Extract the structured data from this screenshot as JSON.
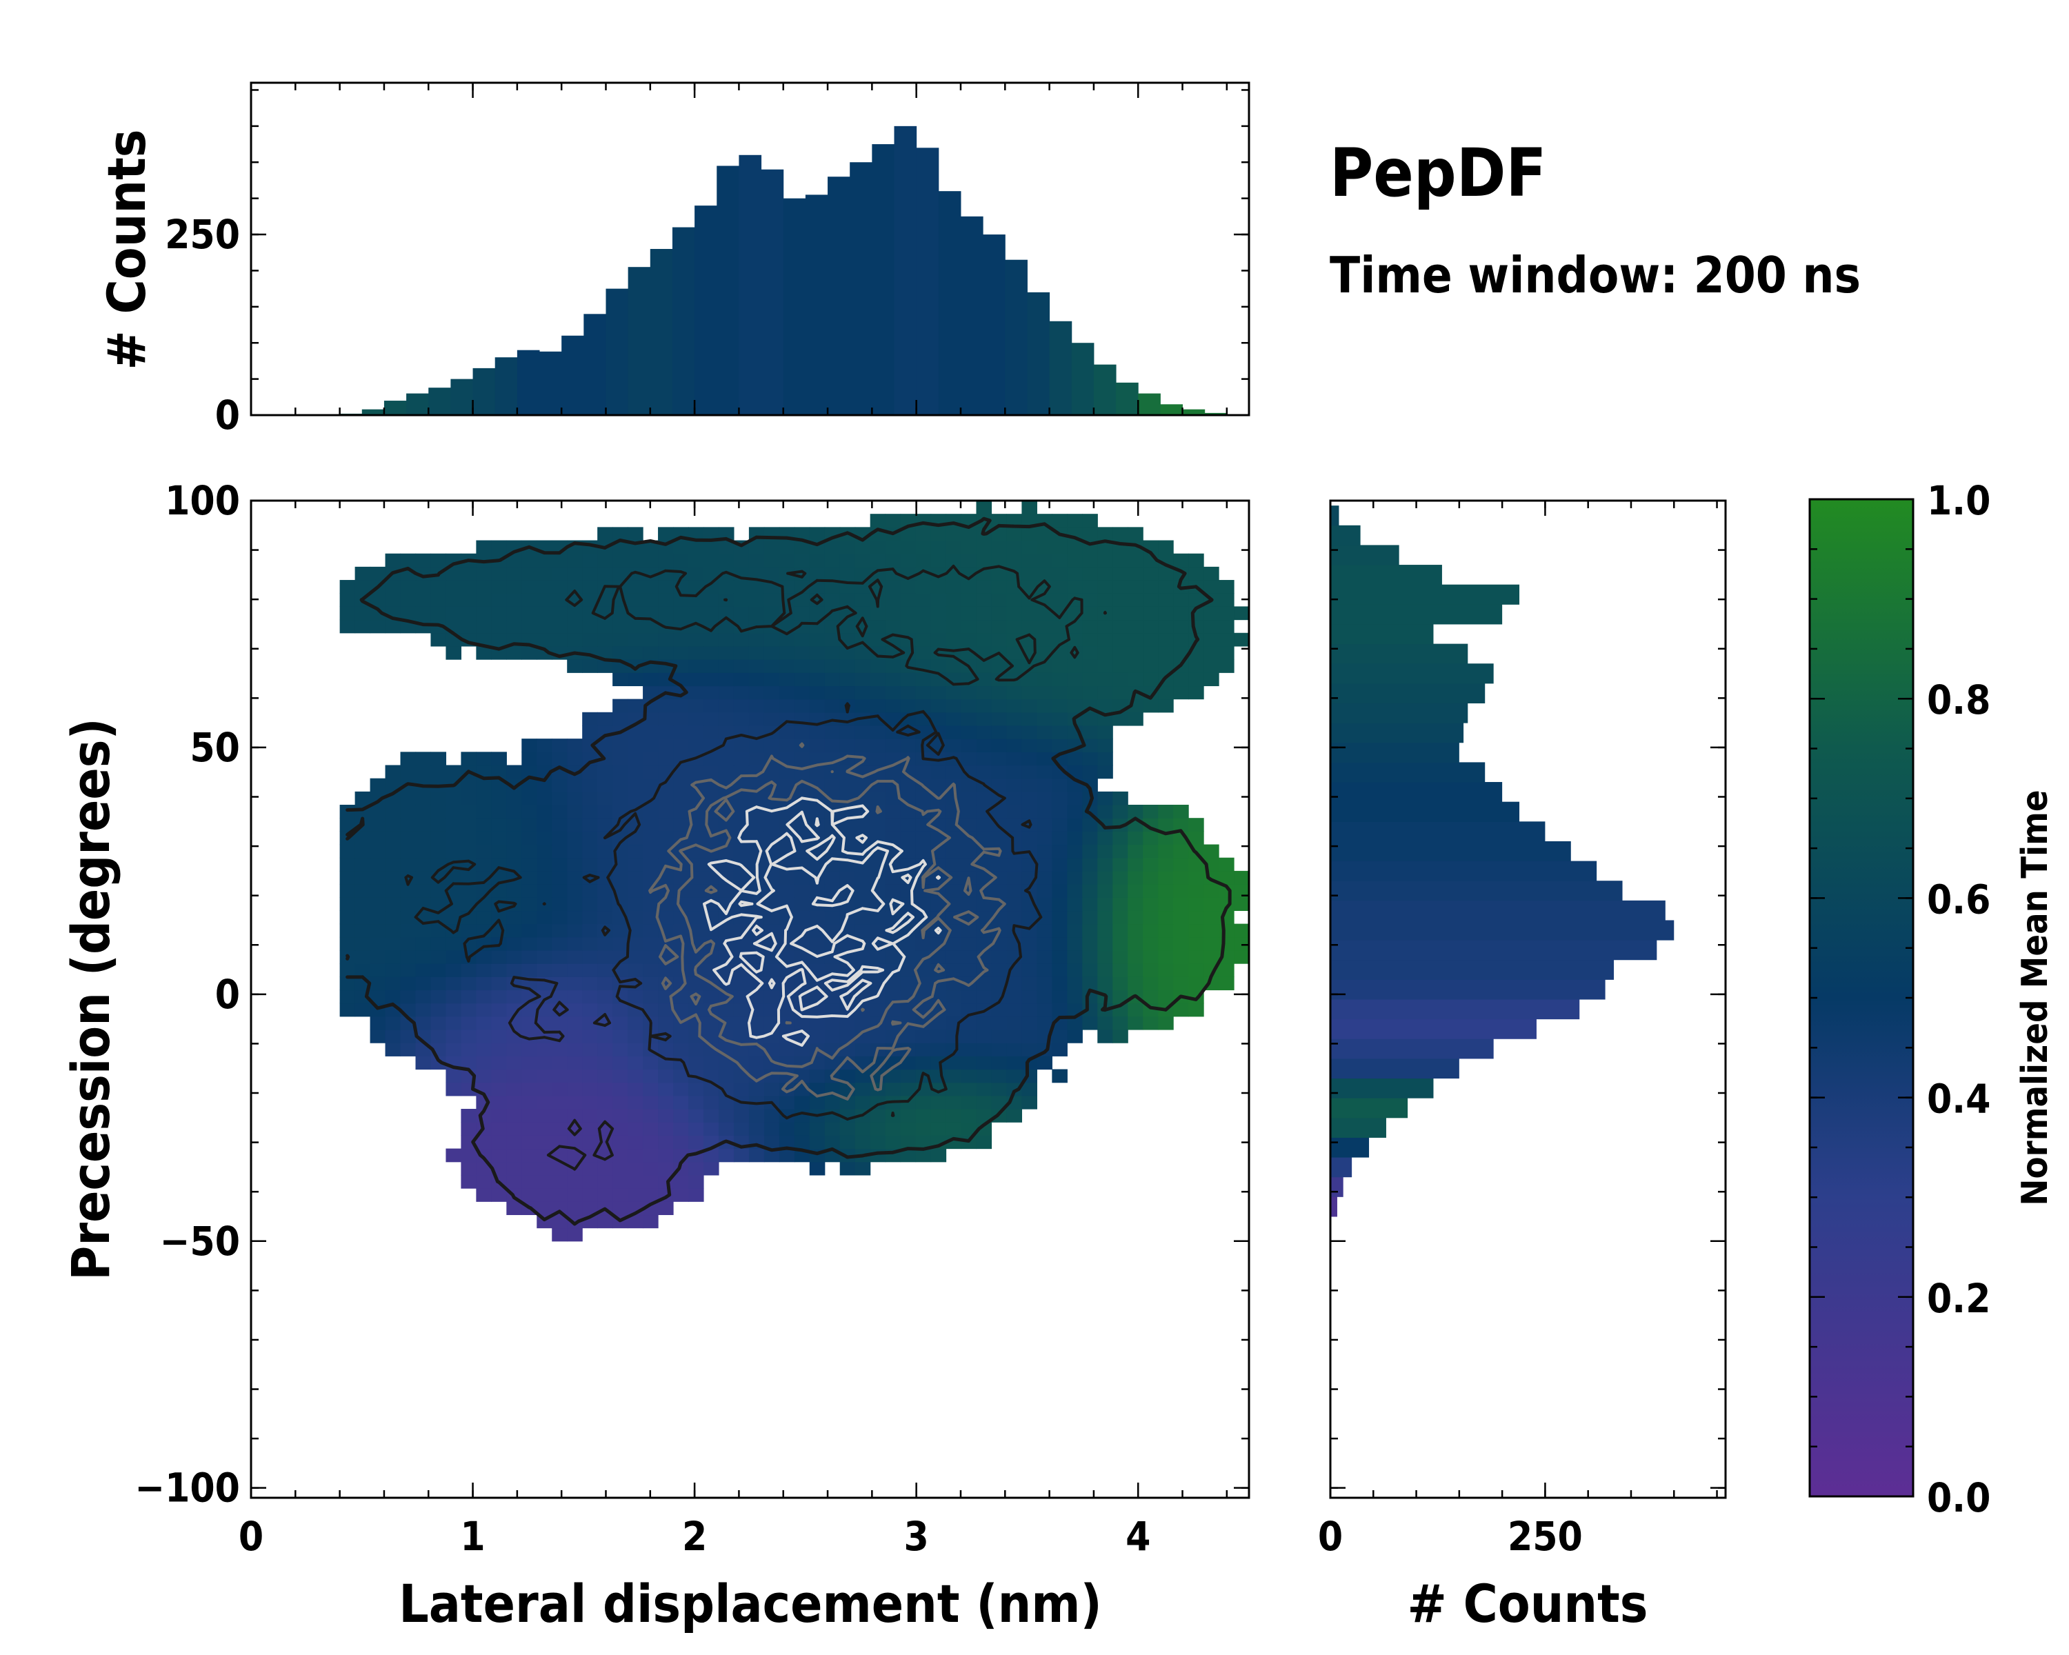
{
  "title": "PepDF",
  "subtitle": "Time window: 200 ns",
  "colors": {
    "cmap_low": "#5d2e95",
    "cmap_mid1": "#2d3f8c",
    "cmap_mid2": "#063a66",
    "cmap_mid3": "#0f5a4e",
    "cmap_high": "#228b22",
    "contour_dark": "#1a1a1a",
    "contour_mid": "#666666",
    "contour_light": "#dddddd"
  },
  "chart_data": [
    {
      "id": "top-histogram",
      "type": "bar",
      "title": "",
      "xlabel": "",
      "ylabel": "# Counts",
      "xlim": [
        0,
        4.5
      ],
      "ylim": [
        0,
        460
      ],
      "yticks": [
        0,
        250
      ],
      "ytick_labels": [
        "0",
        "250"
      ],
      "xticks": [
        0,
        1,
        2,
        3,
        4
      ],
      "x_centers": [
        0.45,
        0.55,
        0.65,
        0.75,
        0.85,
        0.95,
        1.05,
        1.15,
        1.25,
        1.35,
        1.45,
        1.55,
        1.65,
        1.75,
        1.85,
        1.95,
        2.05,
        2.15,
        2.25,
        2.35,
        2.45,
        2.55,
        2.65,
        2.75,
        2.85,
        2.95,
        3.05,
        3.15,
        3.25,
        3.35,
        3.45,
        3.55,
        3.65,
        3.75,
        3.85,
        3.95,
        4.05,
        4.15,
        4.25,
        4.35
      ],
      "counts": [
        2,
        8,
        20,
        30,
        38,
        50,
        65,
        80,
        90,
        88,
        110,
        140,
        175,
        205,
        230,
        260,
        290,
        345,
        360,
        340,
        300,
        305,
        330,
        350,
        375,
        400,
        370,
        310,
        275,
        250,
        215,
        170,
        130,
        100,
        70,
        45,
        30,
        15,
        8,
        3
      ],
      "mean_time": [
        0.72,
        0.7,
        0.68,
        0.65,
        0.62,
        0.6,
        0.58,
        0.55,
        0.5,
        0.5,
        0.5,
        0.5,
        0.52,
        0.55,
        0.55,
        0.52,
        0.5,
        0.5,
        0.48,
        0.48,
        0.5,
        0.5,
        0.5,
        0.5,
        0.5,
        0.48,
        0.48,
        0.5,
        0.5,
        0.5,
        0.52,
        0.55,
        0.6,
        0.65,
        0.7,
        0.75,
        0.85,
        0.9,
        0.9,
        0.88
      ]
    },
    {
      "id": "joint-2d-histogram",
      "type": "heatmap",
      "title": "",
      "xlabel": "Lateral displacement (nm)",
      "ylabel": "Precession (degrees)",
      "xlim": [
        0,
        4.5
      ],
      "ylim": [
        -102,
        100
      ],
      "xticks": [
        0,
        1,
        2,
        3,
        4
      ],
      "xtick_labels": [
        "0",
        "1",
        "2",
        "3",
        "4"
      ],
      "yticks": [
        -100,
        -50,
        0,
        50,
        100
      ],
      "ytick_labels": [
        "−100",
        "−50",
        "0",
        "50",
        "100"
      ],
      "lobes": [
        {
          "x": 2.3,
          "y": 25,
          "sx": 0.45,
          "sy": 18,
          "weight": 1.0,
          "mean_time": 0.42
        },
        {
          "x": 2.9,
          "y": 20,
          "sx": 0.45,
          "sy": 20,
          "weight": 1.0,
          "mean_time": 0.45
        },
        {
          "x": 2.4,
          "y": -5,
          "sx": 0.35,
          "sy": 12,
          "weight": 0.8,
          "mean_time": 0.38
        },
        {
          "x": 1.9,
          "y": 80,
          "sx": 0.8,
          "sy": 7,
          "weight": 0.45,
          "mean_time": 0.62
        },
        {
          "x": 3.4,
          "y": 75,
          "sx": 0.55,
          "sy": 12,
          "weight": 0.45,
          "mean_time": 0.7
        },
        {
          "x": 1.5,
          "y": -30,
          "sx": 0.3,
          "sy": 10,
          "weight": 0.4,
          "mean_time": 0.15
        },
        {
          "x": 2.9,
          "y": -22,
          "sx": 0.3,
          "sy": 6,
          "weight": 0.25,
          "mean_time": 0.92
        },
        {
          "x": 4.1,
          "y": 15,
          "sx": 0.22,
          "sy": 12,
          "weight": 0.3,
          "mean_time": 0.95
        },
        {
          "x": 0.9,
          "y": 20,
          "sx": 0.4,
          "sy": 15,
          "weight": 0.4,
          "mean_time": 0.55
        },
        {
          "x": 1.3,
          "y": -5,
          "sx": 0.3,
          "sy": 8,
          "weight": 0.3,
          "mean_time": 0.22
        }
      ],
      "contour_levels": 6
    },
    {
      "id": "side-histogram",
      "type": "bar",
      "orientation": "horizontal",
      "title": "",
      "xlabel": "# Counts",
      "ylabel": "",
      "xlim": [
        0,
        460
      ],
      "ylim": [
        -102,
        100
      ],
      "xticks": [
        0,
        250
      ],
      "xtick_labels": [
        "0",
        "250"
      ],
      "y_centers": [
        -43,
        -39,
        -35,
        -31,
        -27,
        -23,
        -19,
        -15,
        -11,
        -7,
        -3,
        1,
        5,
        9,
        13,
        17,
        21,
        25,
        29,
        33,
        37,
        41,
        45,
        49,
        53,
        57,
        61,
        65,
        69,
        73,
        77,
        81,
        85,
        89,
        93,
        97
      ],
      "counts": [
        8,
        15,
        25,
        45,
        65,
        90,
        120,
        150,
        190,
        240,
        290,
        320,
        330,
        380,
        400,
        390,
        340,
        310,
        280,
        250,
        220,
        200,
        180,
        150,
        155,
        160,
        180,
        190,
        160,
        120,
        200,
        220,
        130,
        80,
        35,
        10
      ],
      "mean_time": [
        0.1,
        0.2,
        0.35,
        0.5,
        0.7,
        0.75,
        0.65,
        0.4,
        0.35,
        0.3,
        0.32,
        0.38,
        0.4,
        0.4,
        0.42,
        0.42,
        0.44,
        0.46,
        0.48,
        0.48,
        0.5,
        0.5,
        0.52,
        0.55,
        0.58,
        0.6,
        0.62,
        0.64,
        0.66,
        0.68,
        0.68,
        0.68,
        0.68,
        0.66,
        0.65,
        0.6
      ]
    },
    {
      "id": "colorbar",
      "type": "colorbar",
      "label": "Normalized Mean Time",
      "range": [
        0,
        1
      ],
      "ticks": [
        0,
        0.2,
        0.4,
        0.6,
        0.8,
        1.0
      ],
      "tick_labels": [
        "0.0",
        "0.2",
        "0.4",
        "0.6",
        "0.8",
        "1.0"
      ]
    }
  ]
}
